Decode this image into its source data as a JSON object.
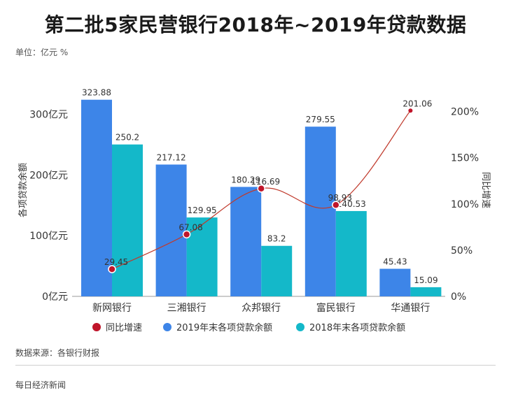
{
  "title": "第二批5家民营银行2018年~2019年贷款数据",
  "unit_label": "单位：亿元 %",
  "source": "数据来源：各银行财报",
  "footer": "每日经济新闻",
  "colors": {
    "series_2019": "#3d85e8",
    "series_2018": "#14b8c9",
    "growth_line": "#c0392b",
    "growth_dot": "#c0152a"
  },
  "chart_data": {
    "type": "bar",
    "title": "第二批5家民营银行2018年~2019年贷款数据",
    "categories": [
      "新网银行",
      "三湘银行",
      "众邦银行",
      "富民银行",
      "华通银行"
    ],
    "series": [
      {
        "name": "2019年末各项贷款余额",
        "type": "bar",
        "axis": "left",
        "values": [
          323.88,
          217.12,
          180.29,
          279.55,
          45.43
        ]
      },
      {
        "name": "2018年末各项贷款余额",
        "type": "bar",
        "axis": "left",
        "values": [
          250.2,
          129.95,
          83.2,
          140.53,
          15.09
        ]
      },
      {
        "name": "同比增速",
        "type": "line",
        "axis": "right",
        "values": [
          29.45,
          67.08,
          116.69,
          98.93,
          201.06
        ]
      }
    ],
    "ylabel": "各项贷款余额",
    "y2label": "同比增速",
    "ylim": [
      0,
      350
    ],
    "y2lim": [
      0,
      230
    ],
    "yticks": [
      0,
      100,
      200,
      300
    ],
    "ytick_labels": [
      "0亿元",
      "100亿元",
      "200亿元",
      "300亿元"
    ],
    "y2ticks": [
      0,
      50,
      100,
      150,
      200
    ],
    "y2tick_labels": [
      "0%",
      "50%",
      "100%",
      "150%",
      "200%"
    ],
    "legend_position": "bottom",
    "legend": [
      "同比增速",
      "2019年末各项贷款余额",
      "2018年末各项贷款余额"
    ],
    "grid": false
  }
}
